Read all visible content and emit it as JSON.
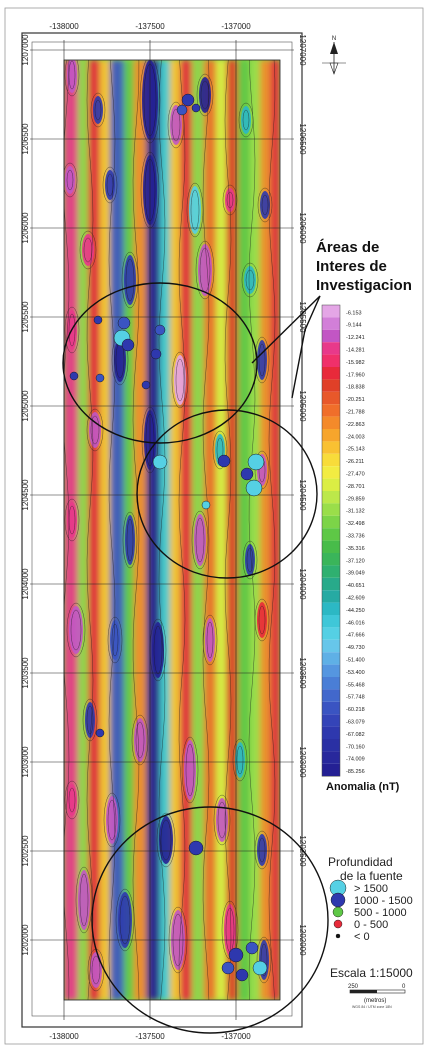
{
  "map": {
    "x_ticks": [
      {
        "label": "-138000"
      },
      {
        "label": "-137500"
      },
      {
        "label": "-137000"
      }
    ],
    "y_ticks": [
      {
        "label": "1202000"
      },
      {
        "label": "1202500"
      },
      {
        "label": "1203000"
      },
      {
        "label": "1203500"
      },
      {
        "label": "1204000"
      },
      {
        "label": "1204500"
      },
      {
        "label": "1205000"
      },
      {
        "label": "1205500"
      },
      {
        "label": "1206000"
      },
      {
        "label": "1206500"
      },
      {
        "label": "1207000"
      }
    ],
    "north_label": "N"
  },
  "annotation": {
    "line1": "Áreas de",
    "line2": "Interes de",
    "line3": "Investigacion"
  },
  "legend": {
    "title": "Anomalia (nT)",
    "values": [
      "-6.153",
      "-9.144",
      "-12.241",
      "-14.281",
      "-15.982",
      "-17.960",
      "-18.838",
      "-20.251",
      "-21.788",
      "-22.863",
      "-24.003",
      "-25.143",
      "-26.211",
      "-27.470",
      "-28.701",
      "-29.859",
      "-31.132",
      "-32.498",
      "-33.736",
      "-35.316",
      "-37.120",
      "-39.049",
      "-40.651",
      "-42.609",
      "-44.250",
      "-46.016",
      "-47.666",
      "-49.730",
      "-51.400",
      "-53.400",
      "-55.468",
      "-57.748",
      "-60.218",
      "-63.079",
      "-67.082",
      "-70.160",
      "-74.009",
      "-85.256"
    ],
    "colors": [
      "#e4a6e6",
      "#d27fd8",
      "#c256c4",
      "#e8398a",
      "#f0306a",
      "#e82a3a",
      "#e04028",
      "#e8582a",
      "#f06e2a",
      "#f48a2a",
      "#f7a52c",
      "#f9c132",
      "#f8dc3a",
      "#f2ec42",
      "#dbee44",
      "#bce84a",
      "#9ade4a",
      "#7cd448",
      "#5ec846",
      "#48bc4a",
      "#3ab55a",
      "#2fb070",
      "#28aa8a",
      "#26aaa3",
      "#2cb8c4",
      "#3fc7d8",
      "#55d0e4",
      "#67c6ea",
      "#5fb0e6",
      "#5596e0",
      "#4a7ed6",
      "#4268cc",
      "#3a54c2",
      "#3444b8",
      "#2e38ae",
      "#2a30a4",
      "#28289c",
      "#242094"
    ]
  },
  "depth": {
    "title_line1": "Profundidad",
    "title_line2": "de la fuente",
    "rows": [
      {
        "symbol": "cyan",
        "text": "> 1500"
      },
      {
        "symbol": "blue",
        "text": "1000  -  1500"
      },
      {
        "symbol": "green",
        "text": "500  -  1000"
      },
      {
        "symbol": "red",
        "text": "0  -  500"
      },
      {
        "symbol": "black",
        "text": "< 0"
      }
    ]
  },
  "scale": {
    "text": "Escala 1:15000",
    "left": "250",
    "right": "0",
    "unit": "(metros)",
    "note": "WGS 84 / UTM zone 18N"
  }
}
